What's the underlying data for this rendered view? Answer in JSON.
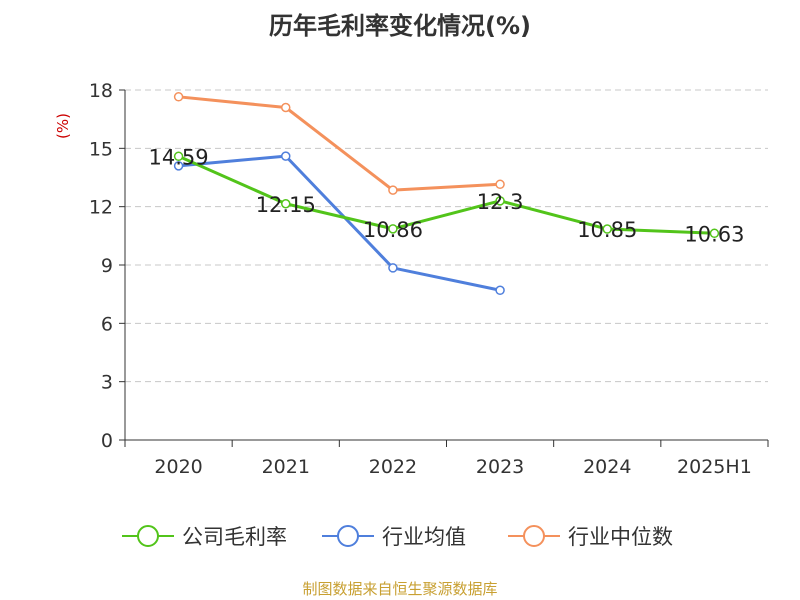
{
  "chart_data": {
    "type": "line",
    "title": "历年毛利率变化情况(%)",
    "ylabel": "(%)",
    "categories": [
      "2020",
      "2021",
      "2022",
      "2023",
      "2024",
      "2025H1"
    ],
    "ylim": [
      0,
      18
    ],
    "yticks": [
      0,
      3,
      6,
      9,
      12,
      15,
      18
    ],
    "grid": true,
    "legend_position": "bottom",
    "series": [
      {
        "name": "公司毛利率",
        "color": "#52c41a",
        "values": [
          14.59,
          12.15,
          10.86,
          12.3,
          10.85,
          10.63
        ],
        "labels": [
          "14.59",
          "12.15",
          "10.86",
          "12.3",
          "10.85",
          "10.63"
        ]
      },
      {
        "name": "行业均值",
        "color": "#4f7fdc",
        "values": [
          14.1,
          14.6,
          8.85,
          7.7,
          null,
          null
        ]
      },
      {
        "name": "行业中位数",
        "color": "#f4915c",
        "values": [
          17.65,
          17.1,
          12.85,
          13.15,
          null,
          null
        ]
      }
    ],
    "source": "制图数据来自恒生聚源数据库"
  }
}
